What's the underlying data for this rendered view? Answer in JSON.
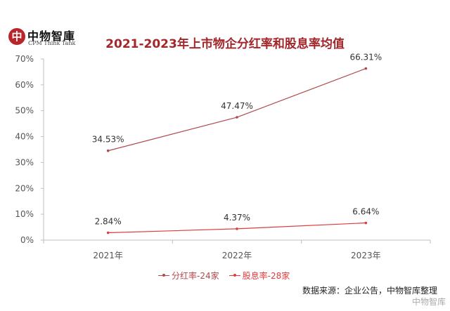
{
  "brand": {
    "mark": "中",
    "name": "中物智庫",
    "sub": "CPM Think Tank"
  },
  "chart_data": {
    "type": "line",
    "title": "2021-2023年上市物企分红率和股息率均值",
    "categories": [
      "2021年",
      "2022年",
      "2023年"
    ],
    "ylim": [
      0,
      70
    ],
    "yticks": [
      0,
      10,
      20,
      30,
      40,
      50,
      60,
      70
    ],
    "ytick_labels": [
      "0%",
      "10%",
      "20%",
      "30%",
      "40%",
      "50%",
      "60%",
      "70%"
    ],
    "grid": false,
    "legend_position": "bottom",
    "series": [
      {
        "name": "分红率-24家",
        "values": [
          34.53,
          47.47,
          66.31
        ],
        "labels": [
          "34.53%",
          "47.47%",
          "66.31%"
        ],
        "color": "#b04a4a"
      },
      {
        "name": "股息率-28家",
        "values": [
          2.84,
          4.37,
          6.64
        ],
        "labels": [
          "2.84%",
          "4.37%",
          "6.64%"
        ],
        "color": "#e03c3c"
      }
    ]
  },
  "source": "数据来源：企业公告，中物智库整理",
  "watermark": "中物智库"
}
